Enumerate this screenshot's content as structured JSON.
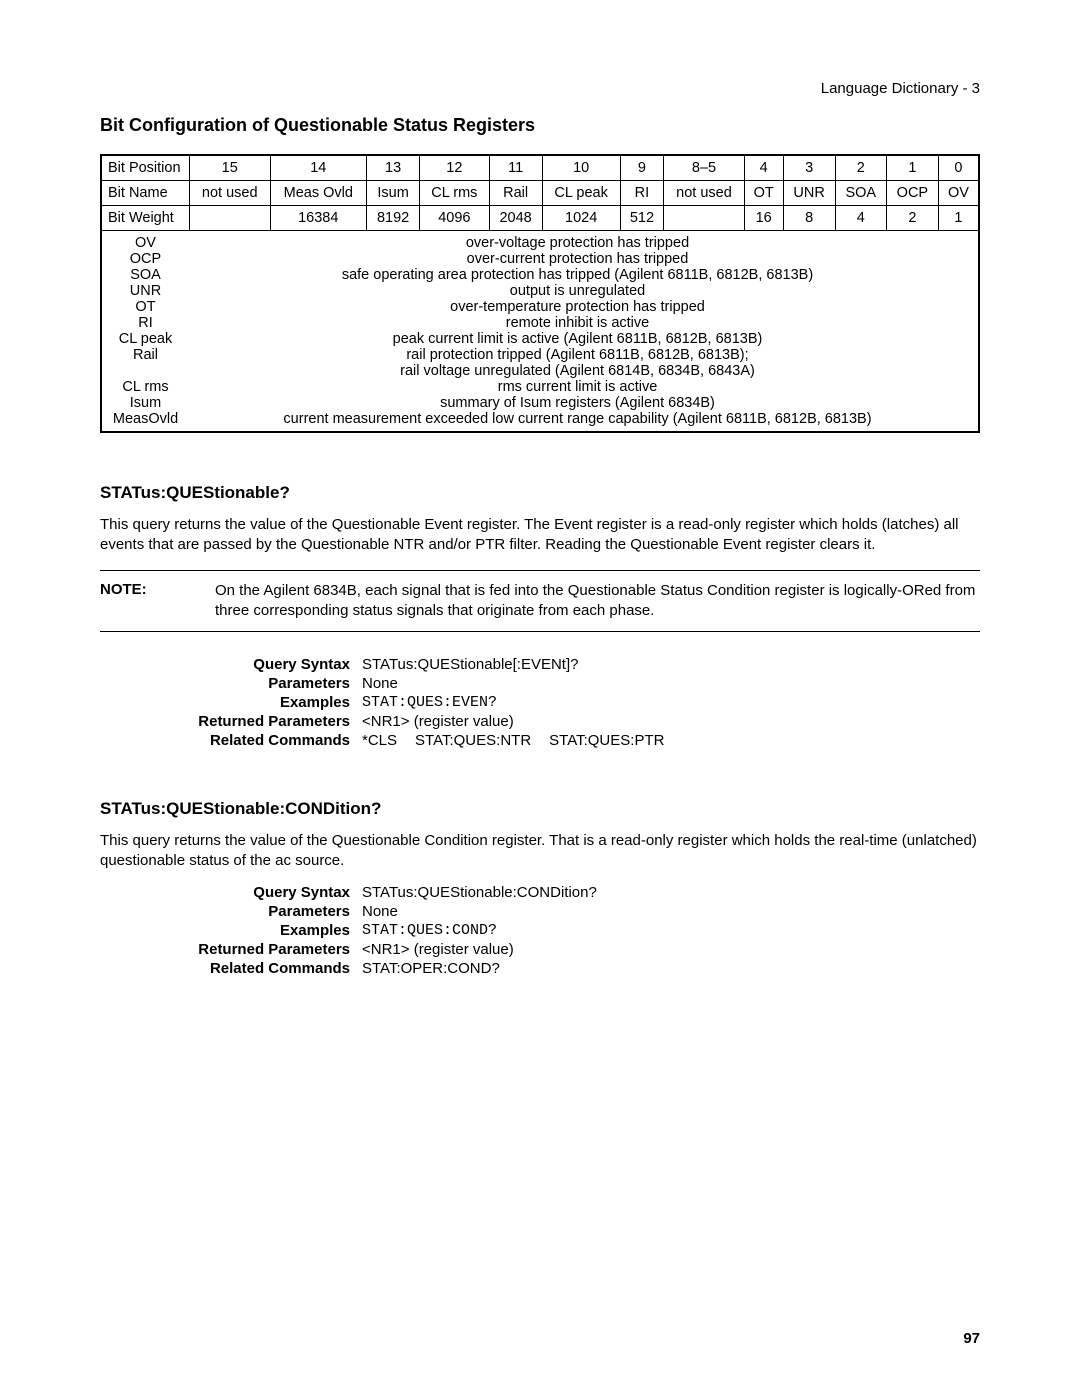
{
  "header": {
    "right": "Language Dictionary - 3"
  },
  "title1": "Bit Configuration of Questionable Status Registers",
  "bitTable": {
    "rows": [
      {
        "label": "Bit Position",
        "cells": [
          "15",
          "14",
          "13",
          "12",
          "11",
          "10",
          "9",
          "8–5",
          "4",
          "3",
          "2",
          "1",
          "0"
        ]
      },
      {
        "label": "Bit Name",
        "cells": [
          "not used",
          "Meas Ovld",
          "Isum",
          "CL rms",
          "Rail",
          "CL peak",
          "RI",
          "not used",
          "OT",
          "UNR",
          "SOA",
          "OCP",
          "OV"
        ]
      },
      {
        "label": "Bit Weight",
        "cells": [
          "",
          "16384",
          "8192",
          "4096",
          "2048",
          "1024",
          "512",
          "",
          "16",
          "8",
          "4",
          "2",
          "1"
        ]
      }
    ],
    "definitions": [
      {
        "term": "OV",
        "desc": "over-voltage protection has tripped"
      },
      {
        "term": "OCP",
        "desc": "over-current protection has tripped"
      },
      {
        "term": "SOA",
        "desc": "safe operating area protection has tripped (Agilent 6811B, 6812B, 6813B)"
      },
      {
        "term": "UNR",
        "desc": "output is unregulated"
      },
      {
        "term": "OT",
        "desc": "over-temperature protection has tripped"
      },
      {
        "term": "RI",
        "desc": "remote inhibit is active"
      },
      {
        "term": "CL peak",
        "desc": "peak current limit is active (Agilent 6811B, 6812B, 6813B)"
      },
      {
        "term": "Rail",
        "desc": "rail protection tripped (Agilent 6811B, 6812B, 6813B);"
      },
      {
        "term": "",
        "desc": "rail voltage unregulated (Agilent 6814B, 6834B, 6843A)"
      },
      {
        "term": "CL rms",
        "desc": "rms current limit is active"
      },
      {
        "term": "Isum",
        "desc": "summary of Isum registers (Agilent 6834B)"
      },
      {
        "term": "MeasOvld",
        "desc": "current measurement exceeded low current range capability (Agilent 6811B, 6812B, 6813B)"
      }
    ]
  },
  "sec1": {
    "title": "STATus:QUEStionable?",
    "para": "This query returns the value of the Questionable Event register. The Event register is a read-only register which holds (latches) all events that are passed by the Questionable NTR and/or PTR filter.  Reading the Questionable Event register clears it.",
    "noteLabel": "NOTE:",
    "noteText": "On the Agilent 6834B, each signal that is fed into the Questionable Status Condition register is logically-ORed from three corresponding status signals that originate from each phase.",
    "spec": {
      "qsLabel": "Query Syntax",
      "qsVal": "STATus:QUEStionable[:EVENt]?",
      "paramLabel": "Parameters",
      "paramVal": "None",
      "exLabel": "Examples",
      "exVal": "STAT:QUES:EVEN?",
      "rpLabel": "Returned Parameters",
      "rpVal": "<NR1> (register value)",
      "rcLabel": "Related Commands",
      "rc1": "*CLS",
      "rc2": "STAT:QUES:NTR",
      "rc3": "STAT:QUES:PTR"
    }
  },
  "sec2": {
    "title": "STATus:QUEStionable:CONDition?",
    "para": "This query returns the value of the Questionable Condition register. That is a read-only register which holds the real-time (unlatched) questionable status of the ac source.",
    "spec": {
      "qsLabel": "Query Syntax",
      "qsVal": "STATus:QUEStionable:CONDition?",
      "paramLabel": "Parameters",
      "paramVal": "None",
      "exLabel": "Examples",
      "exVal": "STAT:QUES:COND?",
      "rpLabel": "Returned Parameters",
      "rpVal": "<NR1> (register value)",
      "rcLabel": "Related Commands",
      "rcVal": "STAT:OPER:COND?"
    }
  },
  "pageNumber": "97"
}
